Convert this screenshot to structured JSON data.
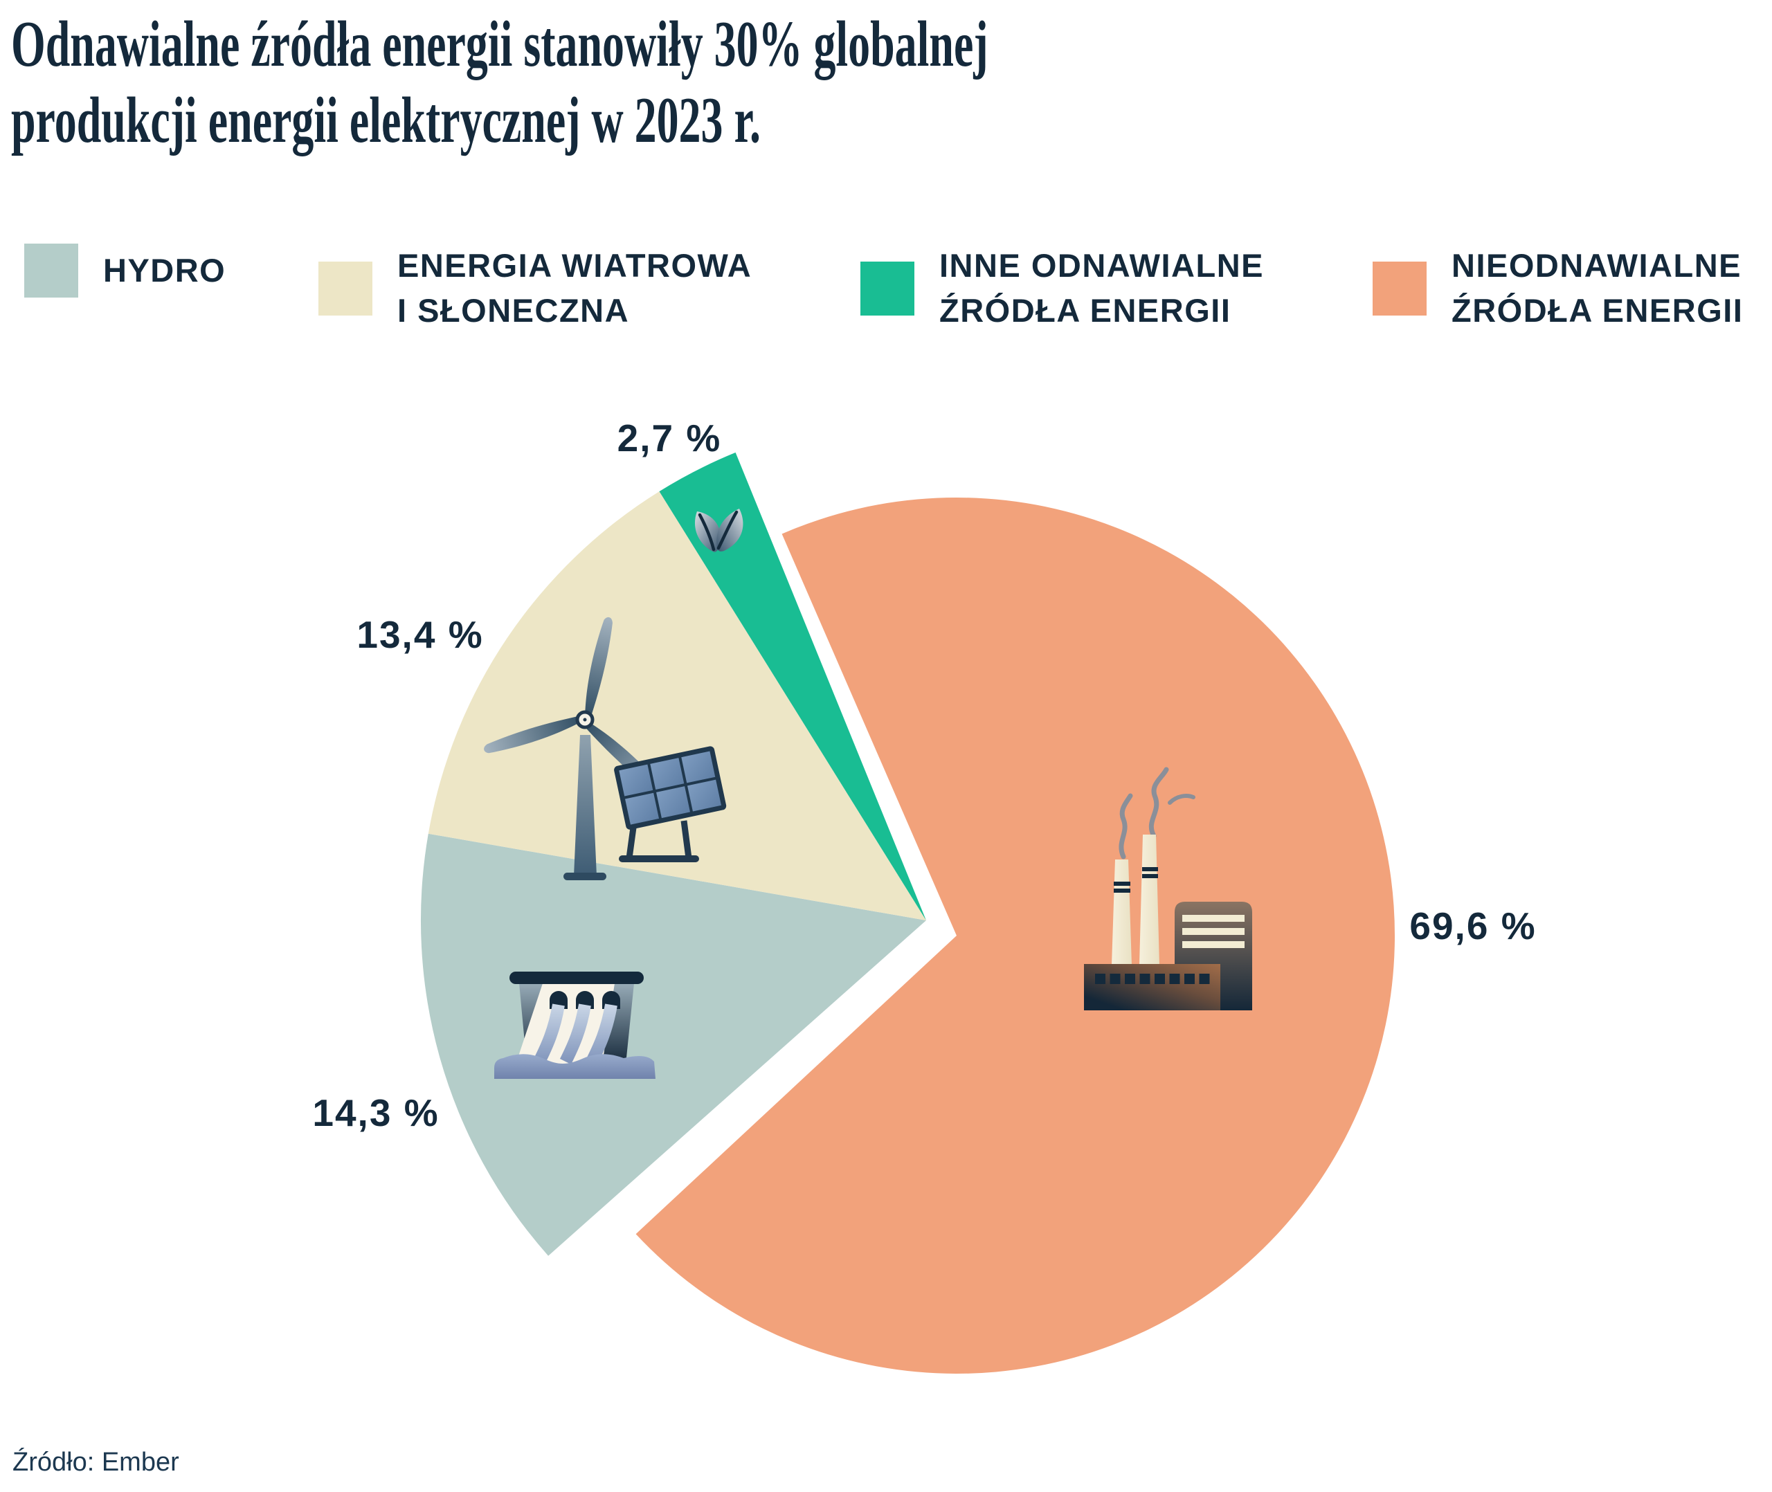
{
  "title": {
    "line1": "Odnawialne źródła energii stanowiły 30% globalnej",
    "line2": "produkcji energii elektrycznej w 2023 r."
  },
  "legend": [
    {
      "line1": "HYDRO",
      "line2": "",
      "color": "#B4CDC9"
    },
    {
      "line1": "ENERGIA WIATROWA",
      "line2": "I SŁONECZNA",
      "color": "#EDE6C6"
    },
    {
      "line1": "INNE ODNAWIALNE",
      "line2": "ŹRÓDŁA ENERGII",
      "color": "#19BD93"
    },
    {
      "line1": "NIEODNAWIALNE",
      "line2": "ŹRÓDŁA ENERGII",
      "color": "#F2A27B"
    }
  ],
  "source": "Źródło: Ember",
  "colors": {
    "text": "#14293B",
    "background": "#FFFFFF",
    "hydro": "#B4CDC9",
    "wind_solar": "#EDE6C6",
    "other_renewables": "#19BD93",
    "non_renewables": "#F2A27B"
  },
  "chart_data": {
    "type": "pie",
    "title": "Odnawialne źródła energii stanowiły 30% globalnej produkcji energii elektrycznej w 2023 r.",
    "unit": "percent",
    "slices": [
      {
        "label": "Hydro",
        "value": 14.3,
        "display": "14,3 %",
        "color": "#B4CDC9",
        "icon": "dam-icon"
      },
      {
        "label": "Energia wiatrowa i słoneczna",
        "value": 13.4,
        "display": "13,4 %",
        "color": "#EDE6C6",
        "icon": "wind-turbine-solar-panel-icon"
      },
      {
        "label": "Inne odnawialne źródła energii",
        "value": 2.7,
        "display": "2,7 %",
        "color": "#19BD93",
        "icon": "leaf-icon"
      },
      {
        "label": "Nieodnawialne źródła energii",
        "value": 69.6,
        "display": "69,6 %",
        "color": "#F2A27B",
        "icon": "factory-icon"
      }
    ],
    "layout": {
      "exploded": true,
      "renewables_start_angle_deg": -131.6,
      "nonrenewable_start_angle_deg": -23.5,
      "legend_position": "top",
      "labels": "outside",
      "grid": false
    }
  }
}
